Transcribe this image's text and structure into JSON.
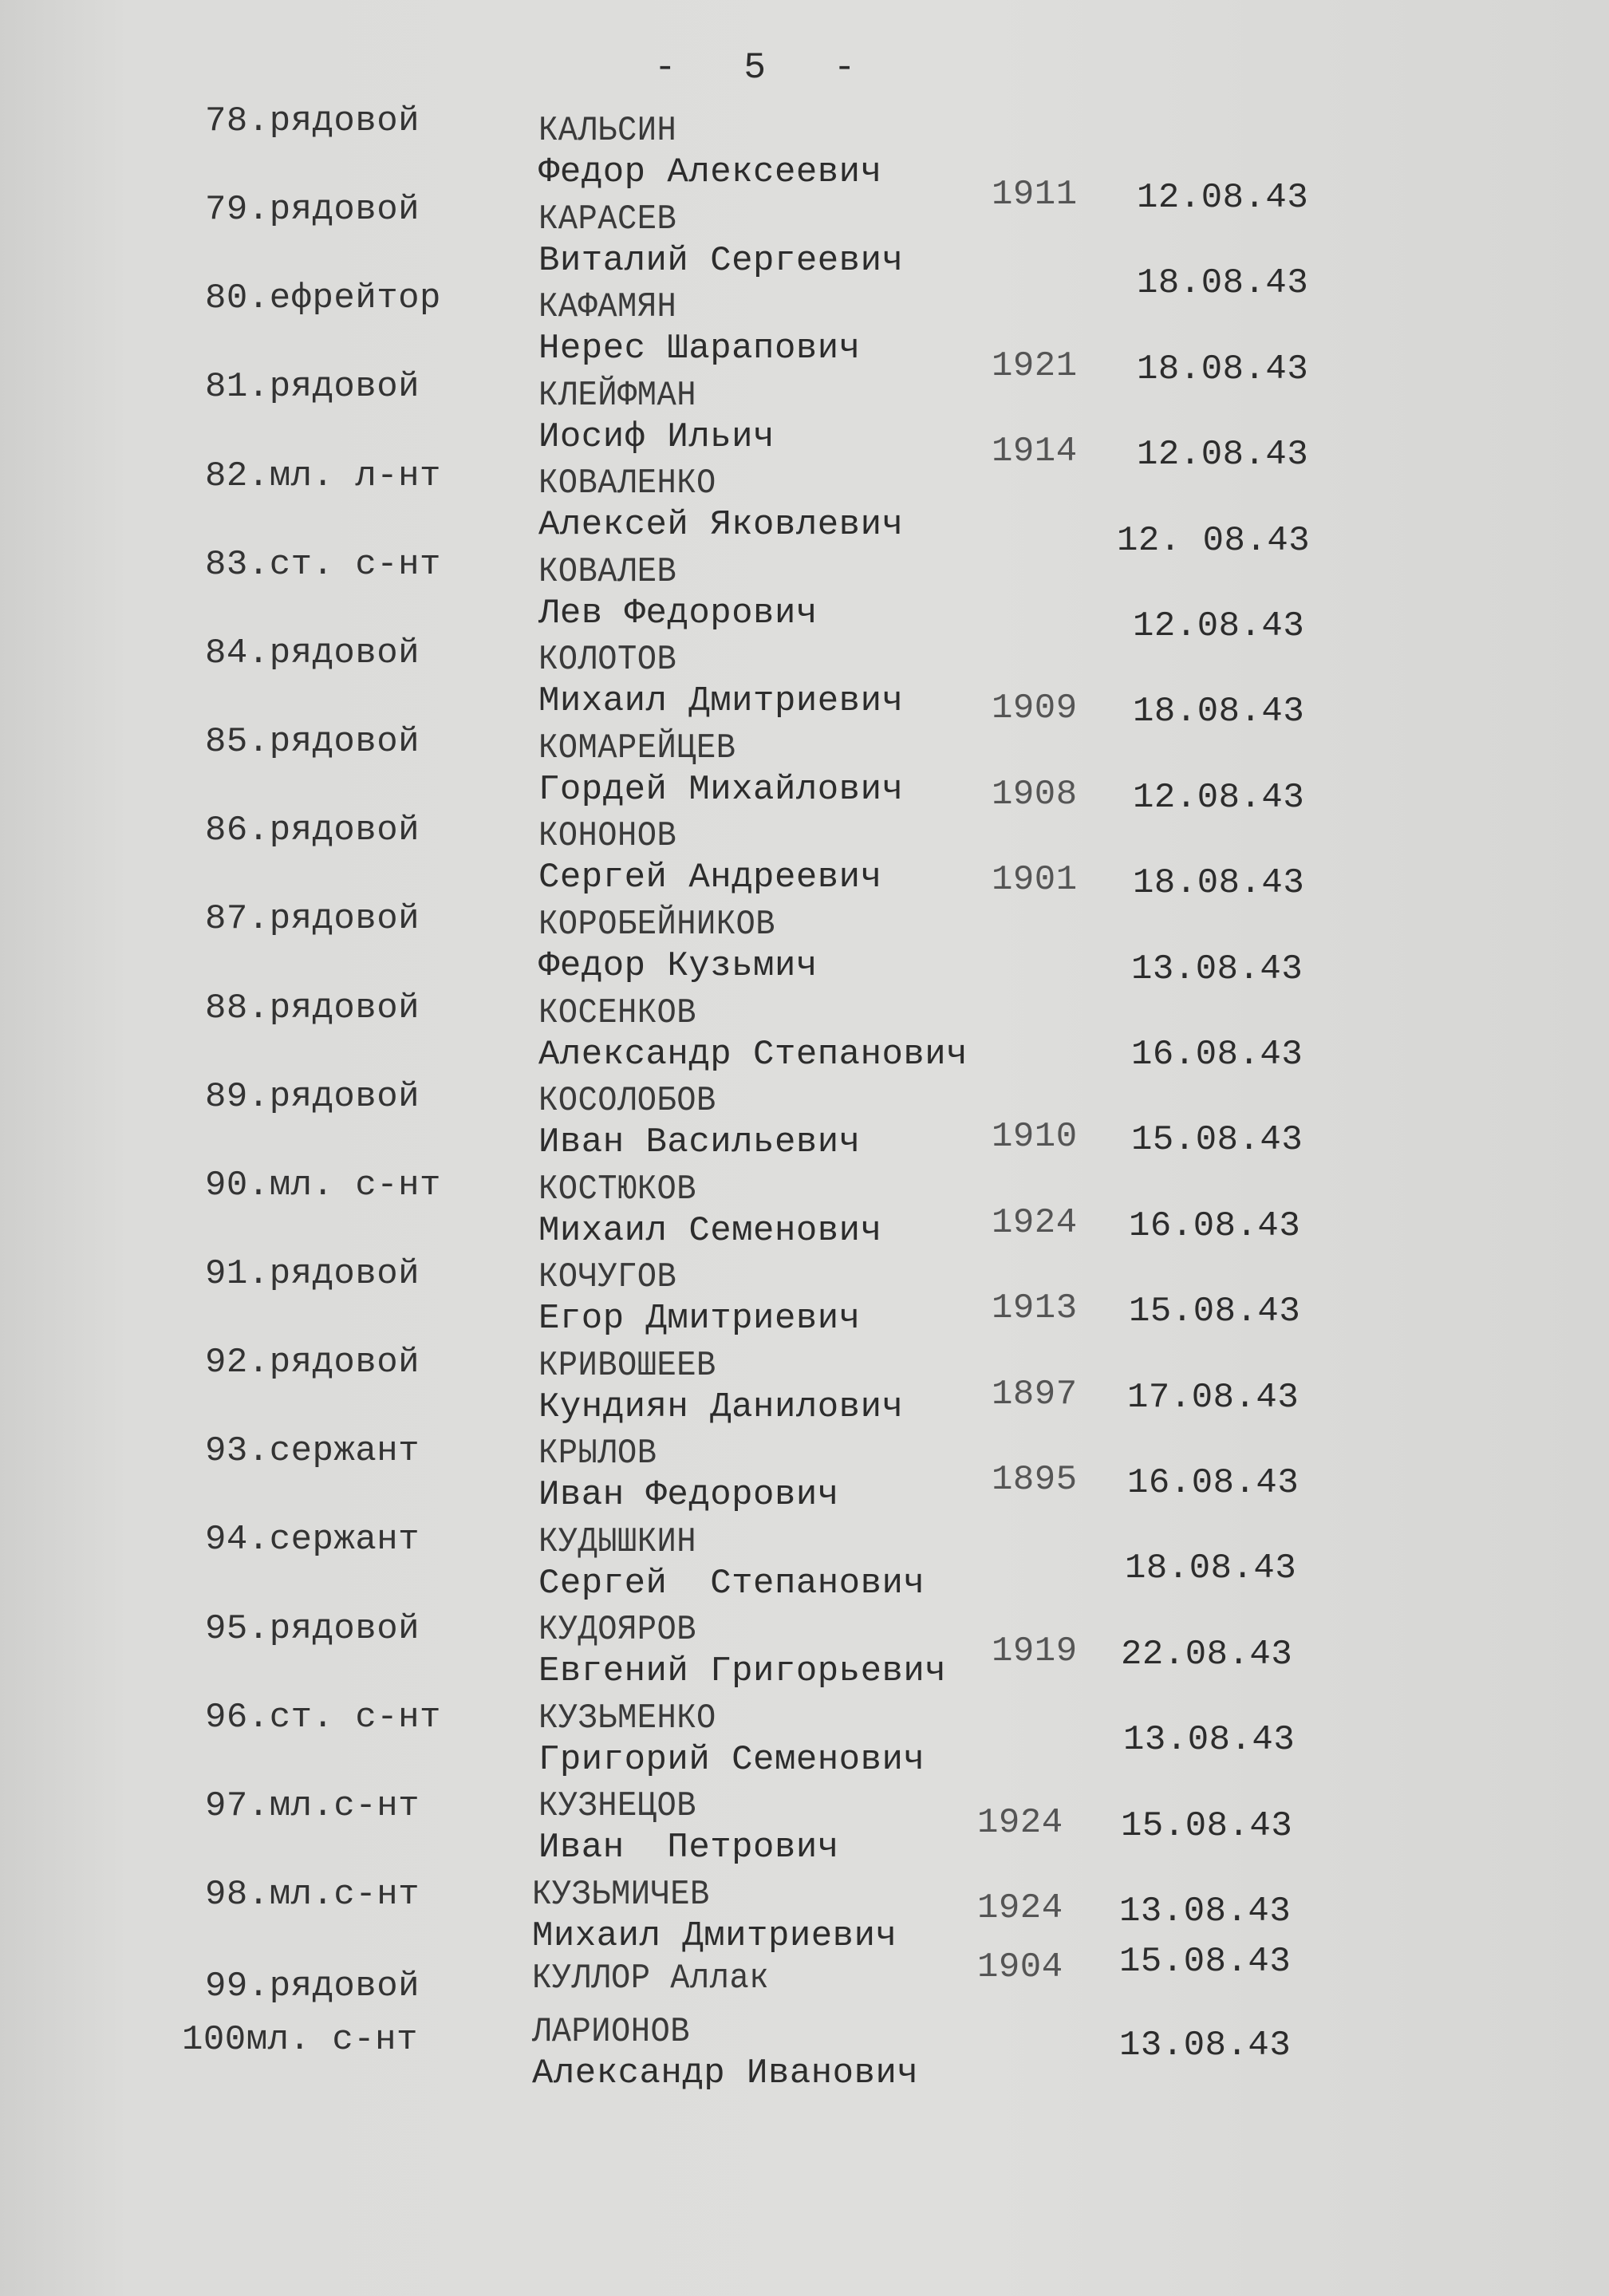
{
  "page_number": "-   5   -",
  "rows": [
    {
      "rank": "78.рядовой",
      "surname": "КАЛЬСИН",
      "given": "Федор Алексеевич",
      "year": "1911",
      "date": "12.08.43"
    },
    {
      "rank": "79.рядовой",
      "surname": "КАРАСЕВ",
      "given": "Виталий Сергеевич",
      "year": "",
      "date": "18.08.43"
    },
    {
      "rank": "80.ефрейтор",
      "surname": "КАФАМЯН",
      "given": "Нерес Шарапович",
      "year": "1921",
      "date": "18.08.43"
    },
    {
      "rank": "81.рядовой",
      "surname": "КЛЕЙФМАН",
      "given": "Иосиф Ильич",
      "year": "1914",
      "date": "12.08.43"
    },
    {
      "rank": "82.мл. л-нт",
      "surname": "КОВАЛЕНКО",
      "given": "Алексей Яковлевич",
      "year": "",
      "date": "12. 08.43"
    },
    {
      "rank": "83.ст. с-нт",
      "surname": "КОВАЛЕВ",
      "given": "Лев Федорович",
      "year": "",
      "date": "12.08.43"
    },
    {
      "rank": "84.рядовой",
      "surname": "КОЛОТОВ",
      "given": "Михаил Дмитриевич",
      "year": "1909",
      "date": "18.08.43"
    },
    {
      "rank": "85.рядовой",
      "surname": "КОМАРЕЙЦЕВ",
      "given": "Гордей Михайлович",
      "year": "1908",
      "date": "12.08.43"
    },
    {
      "rank": "86.рядовой",
      "surname": "КОНОНОВ",
      "given": "Сергей Андреевич",
      "year": "1901",
      "date": "18.08.43"
    },
    {
      "rank": "87.рядовой",
      "surname": "КОРОБЕЙНИКОВ",
      "given": "Федор Кузьмич",
      "year": "",
      "date": "13.08.43"
    },
    {
      "rank": "88.рядовой",
      "surname": "КОСЕНКОВ",
      "given": "Александр Степанович",
      "year": "",
      "date": "16.08.43"
    },
    {
      "rank": "89.рядовой",
      "surname": "КОСОЛОБОВ",
      "given": "Иван Васильевич",
      "year": "1910",
      "date": "15.08.43"
    },
    {
      "rank": "90.мл. с-нт",
      "surname": "КОСТЮКОВ",
      "given": "Михаил Семенович",
      "year": "1924",
      "date": "16.08.43"
    },
    {
      "rank": "91.рядовой",
      "surname": "КОЧУГОВ",
      "given": "Егор Дмитриевич",
      "year": "1913",
      "date": "15.08.43"
    },
    {
      "rank": "92.рядовой",
      "surname": "КРИВОШЕЕВ",
      "given": "Кундиян Данилович",
      "year": "1897",
      "date": "17.08.43"
    },
    {
      "rank": "93.сержант",
      "surname": "КРЫЛОВ",
      "given": "Иван Федорович",
      "year": "1895",
      "date": "16.08.43"
    },
    {
      "rank": "94.сержант",
      "surname": "КУДЫШКИН",
      "given": "Сергей  Степанович",
      "year": "",
      "date": "18.08.43"
    },
    {
      "rank": "95.рядовой",
      "surname": "КУДОЯРОВ",
      "given": "Евгений Григорьевич",
      "year": "1919",
      "date": "22.08.43"
    },
    {
      "rank": "96.ст. с-нт",
      "surname": "КУЗЬМЕНКО",
      "given": "Григорий Семенович",
      "year": "",
      "date": "13.08.43"
    },
    {
      "rank": "97.мл.с-нт",
      "surname": "КУЗНЕЦОВ",
      "given": "Иван  Петрович",
      "year": "1924",
      "date": "15.08.43"
    },
    {
      "rank": "98.мл.с-нт",
      "surname": "КУЗЬМИЧЕВ",
      "given": "Михаил Дмитриевич",
      "year": "1924",
      "date": "13.08.43"
    },
    {
      "rank": "99.рядовой",
      "surname": "КУЛЛОР Аллак",
      "given": "",
      "year": "1904",
      "date": "15.08.43"
    },
    {
      "rank": "100мл. с-нт",
      "surname": "ЛАРИОНОВ",
      "given": "Александр Иванович",
      "year": "",
      "date": "13.08.43"
    }
  ]
}
